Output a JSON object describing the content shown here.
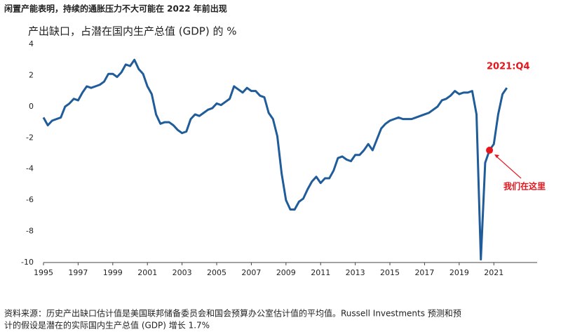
{
  "chart_data": {
    "type": "line",
    "title": "闲置产能表明，持续的通胀压力不大可能在 2022 年前出现",
    "subtitle": "产出缺口，占潜在国内生产总值 (GDP) 的 %",
    "x": [
      1995,
      1995.25,
      1995.5,
      1995.75,
      1996,
      1996.25,
      1996.5,
      1996.75,
      1997,
      1997.25,
      1997.5,
      1997.75,
      1998,
      1998.25,
      1998.5,
      1998.75,
      1999,
      1999.25,
      1999.5,
      1999.75,
      2000,
      2000.25,
      2000.5,
      2000.75,
      2001,
      2001.25,
      2001.5,
      2001.75,
      2002,
      2002.25,
      2002.5,
      2002.75,
      2003,
      2003.25,
      2003.5,
      2003.75,
      2004,
      2004.25,
      2004.5,
      2004.75,
      2005,
      2005.25,
      2005.5,
      2005.75,
      2006,
      2006.25,
      2006.5,
      2006.75,
      2007,
      2007.25,
      2007.5,
      2007.75,
      2008,
      2008.25,
      2008.5,
      2008.75,
      2009,
      2009.25,
      2009.5,
      2009.75,
      2010,
      2010.25,
      2010.5,
      2010.75,
      2011,
      2011.25,
      2011.5,
      2011.75,
      2012,
      2012.25,
      2012.5,
      2012.75,
      2013,
      2013.25,
      2013.5,
      2013.75,
      2014,
      2014.25,
      2014.5,
      2014.75,
      2015,
      2015.25,
      2015.5,
      2015.75,
      2016,
      2016.25,
      2016.5,
      2016.75,
      2017,
      2017.25,
      2017.5,
      2017.75,
      2018,
      2018.25,
      2018.5,
      2018.75,
      2019,
      2019.25,
      2019.5,
      2019.75,
      2020,
      2020.25,
      2020.5,
      2020.75,
      2021,
      2021.25,
      2021.5,
      2021.75
    ],
    "series": [
      {
        "name": "产出缺口",
        "color": "#1f5c99",
        "values": [
          -0.7,
          -1.2,
          -0.9,
          -0.8,
          -0.7,
          0.0,
          0.2,
          0.5,
          0.4,
          0.9,
          1.3,
          1.2,
          1.3,
          1.4,
          1.6,
          2.1,
          2.1,
          1.9,
          2.2,
          2.7,
          2.6,
          3.0,
          2.4,
          2.1,
          1.3,
          0.8,
          -0.5,
          -1.1,
          -1.0,
          -1.0,
          -1.2,
          -1.5,
          -1.7,
          -1.6,
          -0.8,
          -0.5,
          -0.6,
          -0.4,
          -0.2,
          -0.1,
          0.2,
          0.1,
          0.3,
          0.5,
          1.3,
          1.1,
          0.9,
          1.2,
          1.0,
          1.0,
          0.7,
          0.6,
          -0.4,
          -0.8,
          -1.9,
          -4.3,
          -6.0,
          -6.6,
          -6.6,
          -6.1,
          -5.9,
          -5.3,
          -4.8,
          -4.5,
          -4.9,
          -4.6,
          -4.6,
          -4.1,
          -3.3,
          -3.2,
          -3.4,
          -3.5,
          -3.1,
          -3.1,
          -2.8,
          -2.4,
          -2.8,
          -2.1,
          -1.4,
          -1.1,
          -0.9,
          -0.8,
          -0.7,
          -0.8,
          -0.8,
          -0.8,
          -0.7,
          -0.6,
          -0.5,
          -0.4,
          -0.2,
          0.0,
          0.4,
          0.5,
          0.7,
          1.0,
          0.8,
          0.9,
          0.9,
          1.0,
          -0.5,
          -9.8,
          -3.6,
          -2.8,
          -2.4,
          -0.5,
          0.8,
          1.2
        ]
      }
    ],
    "xlim": [
      1995,
      2023.5
    ],
    "xticks": [
      1995,
      1997,
      1999,
      2001,
      2003,
      2005,
      2007,
      2009,
      2011,
      2013,
      2015,
      2017,
      2019,
      2021
    ],
    "ylim": [
      -10,
      4
    ],
    "yticks": [
      -10,
      -8,
      -6,
      -4,
      -2,
      0,
      2,
      4
    ],
    "annotations": [
      {
        "text": "2021:Q4",
        "color": "#e8141c"
      },
      {
        "text": "我们在这里",
        "color": "#e8141c"
      }
    ],
    "note": [
      "资料来源：历史产出缺口估计值是美国联邦储备委员会和国会预算办公室估计值的平均值。Russell Investments 预测和预",
      "计的假设是潜在的实际国内生产总值 (GDP) 增长 1.7%"
    ]
  }
}
